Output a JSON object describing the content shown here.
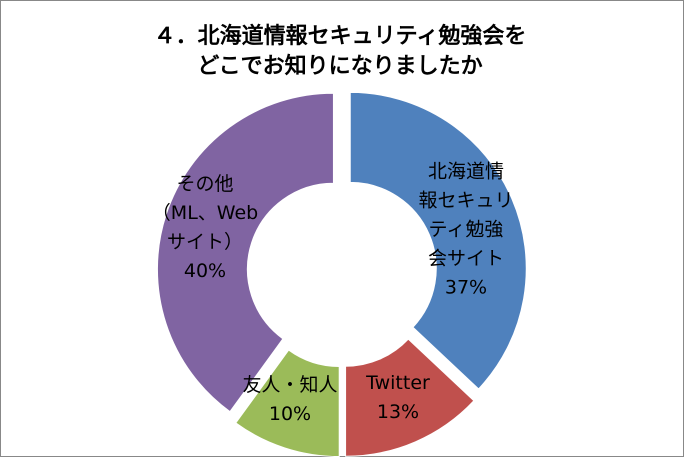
{
  "chart_data": {
    "type": "donut",
    "title": "４．北海道情報セキュリティ勉強会を\nどこでお知りになりましたか",
    "categories": [
      "北海道情\n報セキュリ\nティ勉強\n会サイト",
      "Twitter",
      "友人・知人",
      "その他\n（ML、Web\nサイト）"
    ],
    "values": [
      37,
      13,
      10,
      40
    ],
    "value_labels": [
      "37%",
      "13%",
      "10%",
      "40%"
    ],
    "colors": [
      "#4f81bd",
      "#c0504d",
      "#9bbb59",
      "#8064a2"
    ]
  }
}
